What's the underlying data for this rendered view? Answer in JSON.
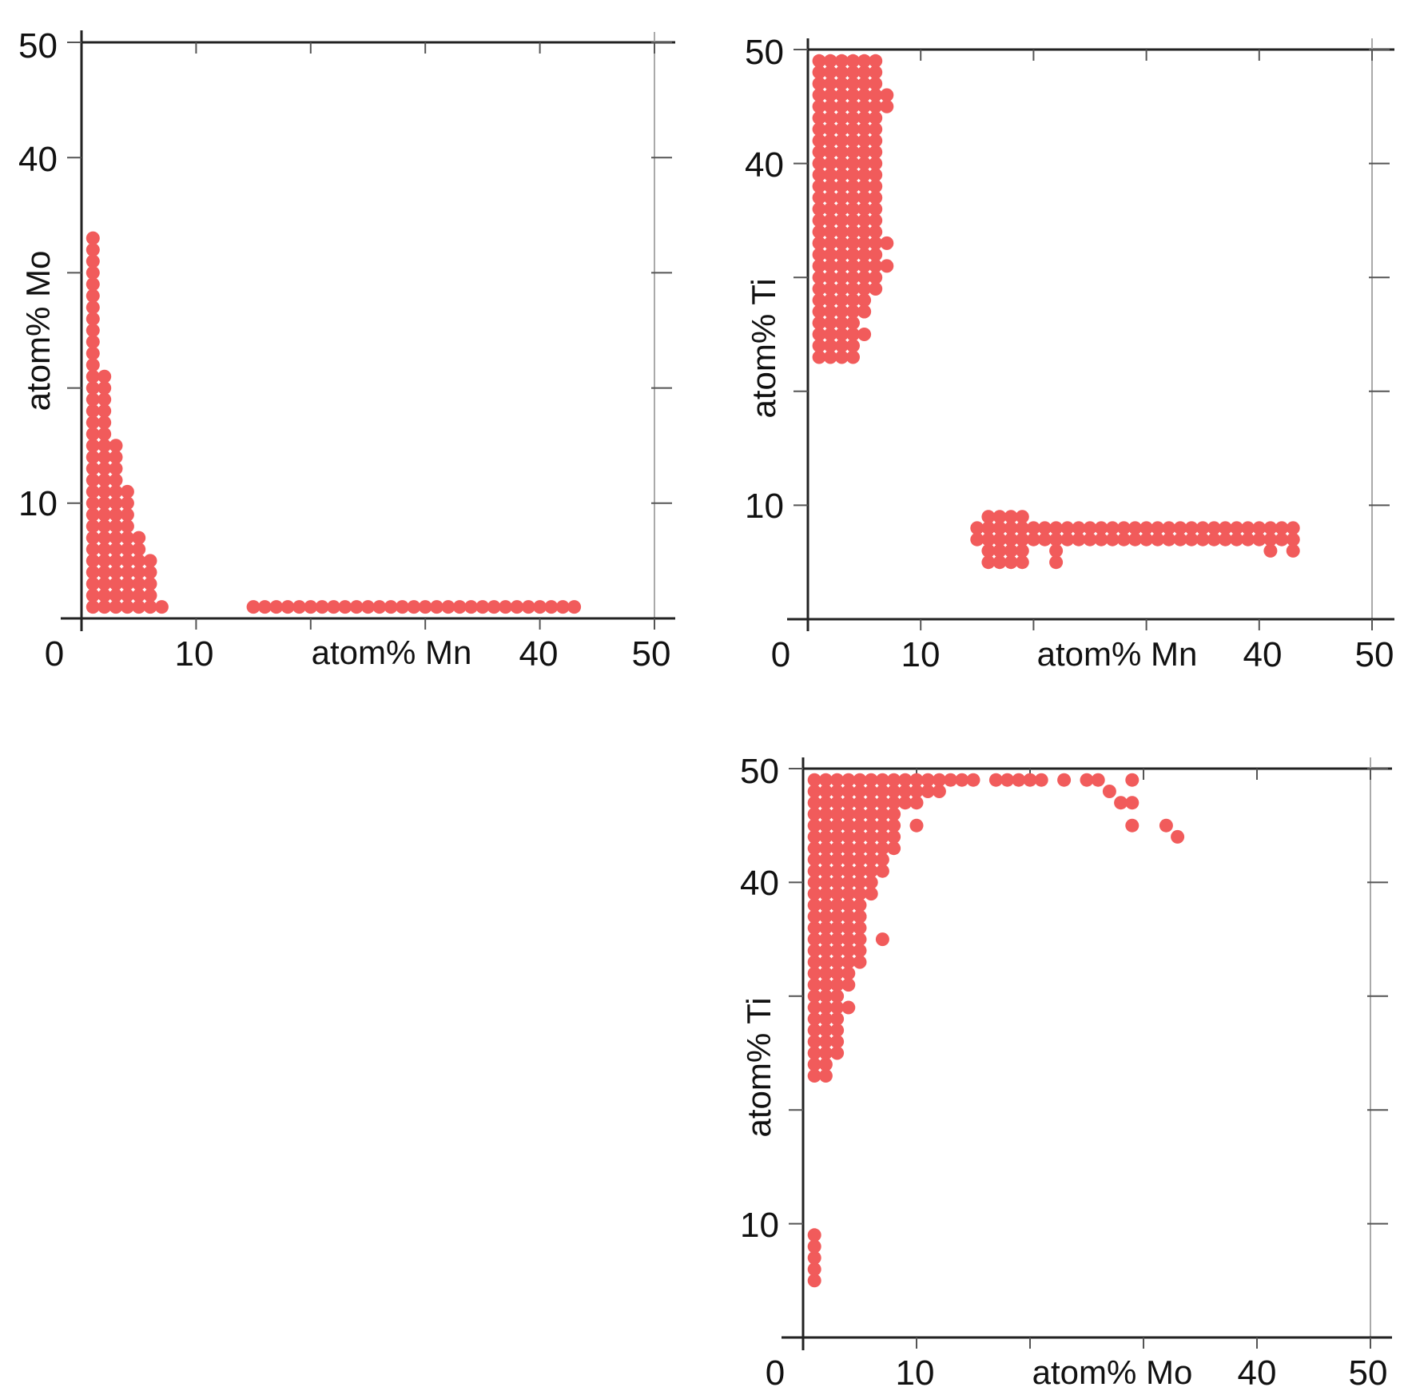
{
  "colors": {
    "marker": "#f15b5b",
    "axis": "#222222",
    "frame": "#aaaaaa"
  },
  "chart_data": [
    {
      "type": "scatter",
      "xlabel": "atom% Mn",
      "ylabel": "atom% Mo",
      "xlim": [
        0,
        50
      ],
      "ylim": [
        0,
        50
      ],
      "x_tick_labels": [
        {
          "value": 0,
          "label": "0"
        },
        {
          "value": 10,
          "label": "10"
        },
        {
          "value": 40,
          "label": "40"
        },
        {
          "value": 50,
          "label": "50"
        }
      ],
      "y_tick_labels": [
        {
          "value": 10,
          "label": "10"
        },
        {
          "value": 40,
          "label": "40"
        },
        {
          "value": 50,
          "label": "50"
        }
      ],
      "rects": [
        {
          "x": [
            1,
            1
          ],
          "y": [
            1,
            33
          ]
        },
        {
          "x": [
            2,
            2
          ],
          "y": [
            1,
            21
          ]
        },
        {
          "x": [
            3,
            3
          ],
          "y": [
            1,
            15
          ]
        },
        {
          "x": [
            4,
            4
          ],
          "y": [
            1,
            11
          ]
        },
        {
          "x": [
            5,
            5
          ],
          "y": [
            1,
            7
          ]
        },
        {
          "x": [
            6,
            6
          ],
          "y": [
            1,
            5
          ]
        },
        {
          "x": [
            7,
            7
          ],
          "y": [
            1,
            1
          ]
        },
        {
          "x": [
            15,
            43
          ],
          "y": [
            1,
            1
          ]
        }
      ],
      "points": []
    },
    {
      "type": "scatter",
      "xlabel": "atom% Mn",
      "ylabel": "atom% Ti",
      "xlim": [
        0,
        50
      ],
      "ylim": [
        0,
        50
      ],
      "x_tick_labels": [
        {
          "value": 0,
          "label": "0"
        },
        {
          "value": 10,
          "label": "10"
        },
        {
          "value": 40,
          "label": "40"
        },
        {
          "value": 50,
          "label": "50"
        }
      ],
      "y_tick_labels": [
        {
          "value": 10,
          "label": "10"
        },
        {
          "value": 40,
          "label": "40"
        },
        {
          "value": 50,
          "label": "50"
        }
      ],
      "rects": [
        {
          "x": [
            1,
            4
          ],
          "y": [
            23,
            49
          ]
        },
        {
          "x": [
            5,
            5
          ],
          "y": [
            27,
            49
          ]
        },
        {
          "x": [
            6,
            6
          ],
          "y": [
            29,
            49
          ]
        },
        {
          "x": [
            7,
            7
          ],
          "y": [
            45,
            46
          ]
        },
        {
          "x": [
            16,
            19
          ],
          "y": [
            5,
            9
          ]
        },
        {
          "x": [
            15,
            43
          ],
          "y": [
            7,
            7
          ]
        },
        {
          "x": [
            15,
            43
          ],
          "y": [
            8,
            8
          ]
        }
      ],
      "points": [
        [
          7,
          31
        ],
        [
          7,
          33
        ],
        [
          5,
          25
        ],
        [
          5,
          27
        ],
        [
          22,
          5
        ],
        [
          22,
          6
        ],
        [
          41,
          6
        ],
        [
          43,
          6
        ]
      ]
    },
    {
      "type": "scatter",
      "xlabel": "atom% Mo",
      "ylabel": "atom% Ti",
      "xlim": [
        0,
        50
      ],
      "ylim": [
        0,
        50
      ],
      "x_tick_labels": [
        {
          "value": 0,
          "label": "0"
        },
        {
          "value": 10,
          "label": "10"
        },
        {
          "value": 40,
          "label": "40"
        },
        {
          "value": 50,
          "label": "50"
        }
      ],
      "y_tick_labels": [
        {
          "value": 10,
          "label": "10"
        },
        {
          "value": 40,
          "label": "40"
        },
        {
          "value": 50,
          "label": "50"
        }
      ],
      "rects": [
        {
          "x": [
            1,
            1
          ],
          "y": [
            5,
            9
          ]
        },
        {
          "x": [
            1,
            2
          ],
          "y": [
            23,
            49
          ]
        },
        {
          "x": [
            3,
            3
          ],
          "y": [
            25,
            49
          ]
        },
        {
          "x": [
            4,
            4
          ],
          "y": [
            31,
            49
          ]
        },
        {
          "x": [
            5,
            5
          ],
          "y": [
            33,
            49
          ]
        },
        {
          "x": [
            6,
            6
          ],
          "y": [
            39,
            49
          ]
        },
        {
          "x": [
            7,
            7
          ],
          "y": [
            41,
            49
          ]
        },
        {
          "x": [
            8,
            8
          ],
          "y": [
            43,
            49
          ]
        },
        {
          "x": [
            9,
            10
          ],
          "y": [
            47,
            49
          ]
        },
        {
          "x": [
            11,
            12
          ],
          "y": [
            48,
            49
          ]
        },
        {
          "x": [
            13,
            15
          ],
          "y": [
            49,
            49
          ]
        },
        {
          "x": [
            17,
            21
          ],
          "y": [
            49,
            49
          ]
        }
      ],
      "points": [
        [
          4,
          29
        ],
        [
          5,
          37
        ],
        [
          5,
          39
        ],
        [
          7,
          35
        ],
        [
          10,
          45
        ],
        [
          23,
          49
        ],
        [
          25,
          49
        ],
        [
          26,
          49
        ],
        [
          27,
          48
        ],
        [
          28,
          47
        ],
        [
          29,
          47
        ],
        [
          29,
          49
        ],
        [
          29,
          45
        ],
        [
          32,
          45
        ],
        [
          33,
          44
        ]
      ]
    }
  ]
}
